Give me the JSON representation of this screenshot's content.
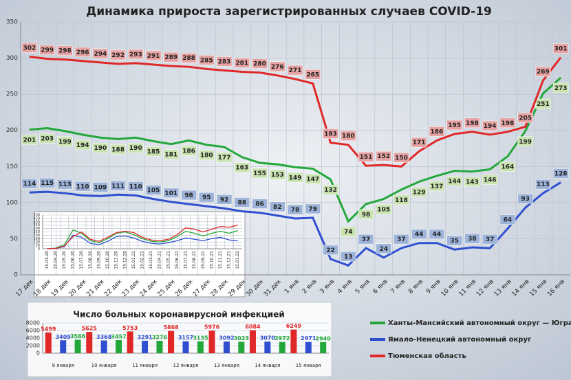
{
  "chart_data": [
    {
      "type": "line",
      "title": "Динамика прироста зарегистрированных случаев COVID-19",
      "categories": [
        "17 дек",
        "18 дек",
        "19 дек",
        "20 дек",
        "21 дек",
        "22 дек",
        "23 дек",
        "24 дек",
        "25 дек",
        "26 дек",
        "27 дек",
        "28 дек",
        "29 дек",
        "30 дек",
        "31 дек",
        "1 янв",
        "2 янв",
        "3 янв",
        "4 янв",
        "5 янв",
        "6 янв",
        "7 янв",
        "8 янв",
        "9 янв",
        "10 янв",
        "11 янв",
        "12 янв",
        "13 янв",
        "14 янв",
        "15 янв",
        "16 янв"
      ],
      "series": [
        {
          "name": "Ханты-Мансийский автономный округ — Югра",
          "color": "#22a83a",
          "label_fill": "#c9e3b0",
          "values": [
            201,
            203,
            199,
            194,
            190,
            188,
            190,
            185,
            181,
            186,
            180,
            177,
            163,
            155,
            153,
            149,
            147,
            132,
            74,
            98,
            105,
            118,
            129,
            137,
            144,
            143,
            146,
            164,
            199,
            251,
            273
          ]
        },
        {
          "name": "Ямало-Ненецкий автономный округ",
          "color": "#2f4fd0",
          "label_fill": "#9db3d8",
          "values": [
            114,
            115,
            113,
            110,
            109,
            111,
            110,
            105,
            101,
            98,
            95,
            92,
            88,
            86,
            82,
            78,
            79,
            22,
            13,
            37,
            24,
            37,
            44,
            44,
            35,
            38,
            37,
            64,
            93,
            113,
            128
          ]
        },
        {
          "name": "Тюменская область",
          "color": "#e02828",
          "label_fill": "#e7a3a3",
          "values": [
            302,
            299,
            298,
            296,
            294,
            292,
            293,
            291,
            289,
            288,
            285,
            283,
            281,
            280,
            276,
            271,
            265,
            183,
            180,
            151,
            152,
            150,
            171,
            186,
            195,
            198,
            194,
            198,
            205,
            269,
            301
          ]
        }
      ],
      "ylim": [
        0,
        350
      ],
      "yticks": [
        0,
        50,
        100,
        150,
        200,
        250,
        300,
        350
      ],
      "grid": true,
      "data_labels": true,
      "legend": "lower right"
    },
    {
      "type": "line",
      "categories": [
        "15.03.20",
        "15.04.20",
        "15.05.20",
        "15.06.20",
        "15.07.20",
        "15.08.20",
        "15.09.20",
        "15.10.20",
        "15.11.20",
        "15.12.20",
        "15.01.21",
        "15.02.21",
        "15.03.21",
        "15.04.21",
        "15.05.21",
        "15.06.21",
        "15.07.21",
        "15.08.21",
        "15.09.21",
        "15.10.21",
        "15.11.21",
        "15.12.21",
        "15.01.22"
      ],
      "series": [
        {
          "color": "#22a83a",
          "values": [
            0,
            10,
            60,
            280,
            230,
            120,
            90,
            150,
            230,
            250,
            210,
            150,
            110,
            100,
            120,
            180,
            260,
            230,
            190,
            230,
            260,
            230,
            270
          ]
        },
        {
          "color": "#2f4fd0",
          "values": [
            0,
            5,
            30,
            200,
            170,
            80,
            60,
            110,
            180,
            190,
            160,
            110,
            80,
            70,
            90,
            120,
            160,
            140,
            120,
            150,
            170,
            130,
            120
          ]
        },
        {
          "color": "#e02828",
          "values": [
            0,
            5,
            40,
            180,
            250,
            140,
            110,
            170,
            240,
            260,
            240,
            170,
            130,
            120,
            140,
            210,
            310,
            290,
            250,
            290,
            330,
            320,
            350
          ]
        }
      ],
      "ylim": [
        0,
        500
      ],
      "yticks": [
        0,
        50,
        100,
        150,
        200,
        250,
        300,
        350,
        400,
        450,
        500
      ],
      "grid": true
    },
    {
      "type": "bar",
      "title": "Число больных коронавирусной  инфекцией",
      "categories": [
        "9 января",
        "10 января",
        "11 января",
        "12 января",
        "13 января",
        "14 января",
        "15 января"
      ],
      "series": [
        {
          "color": "#e02828",
          "values": [
            5499,
            5625,
            5753,
            5868,
            5976,
            6084,
            6249
          ]
        },
        {
          "color": "#2f4fd0",
          "values": [
            3409,
            3368,
            3291,
            3157,
            3092,
            3070,
            2971
          ]
        },
        {
          "color": "#22a83a",
          "values": [
            3566,
            3457,
            3276,
            3135,
            3023,
            2972,
            2940
          ]
        }
      ],
      "ylim": [
        0,
        8000
      ],
      "yticks": [
        0,
        2000,
        4000,
        6000,
        8000
      ],
      "grid": true,
      "data_labels": true
    }
  ]
}
